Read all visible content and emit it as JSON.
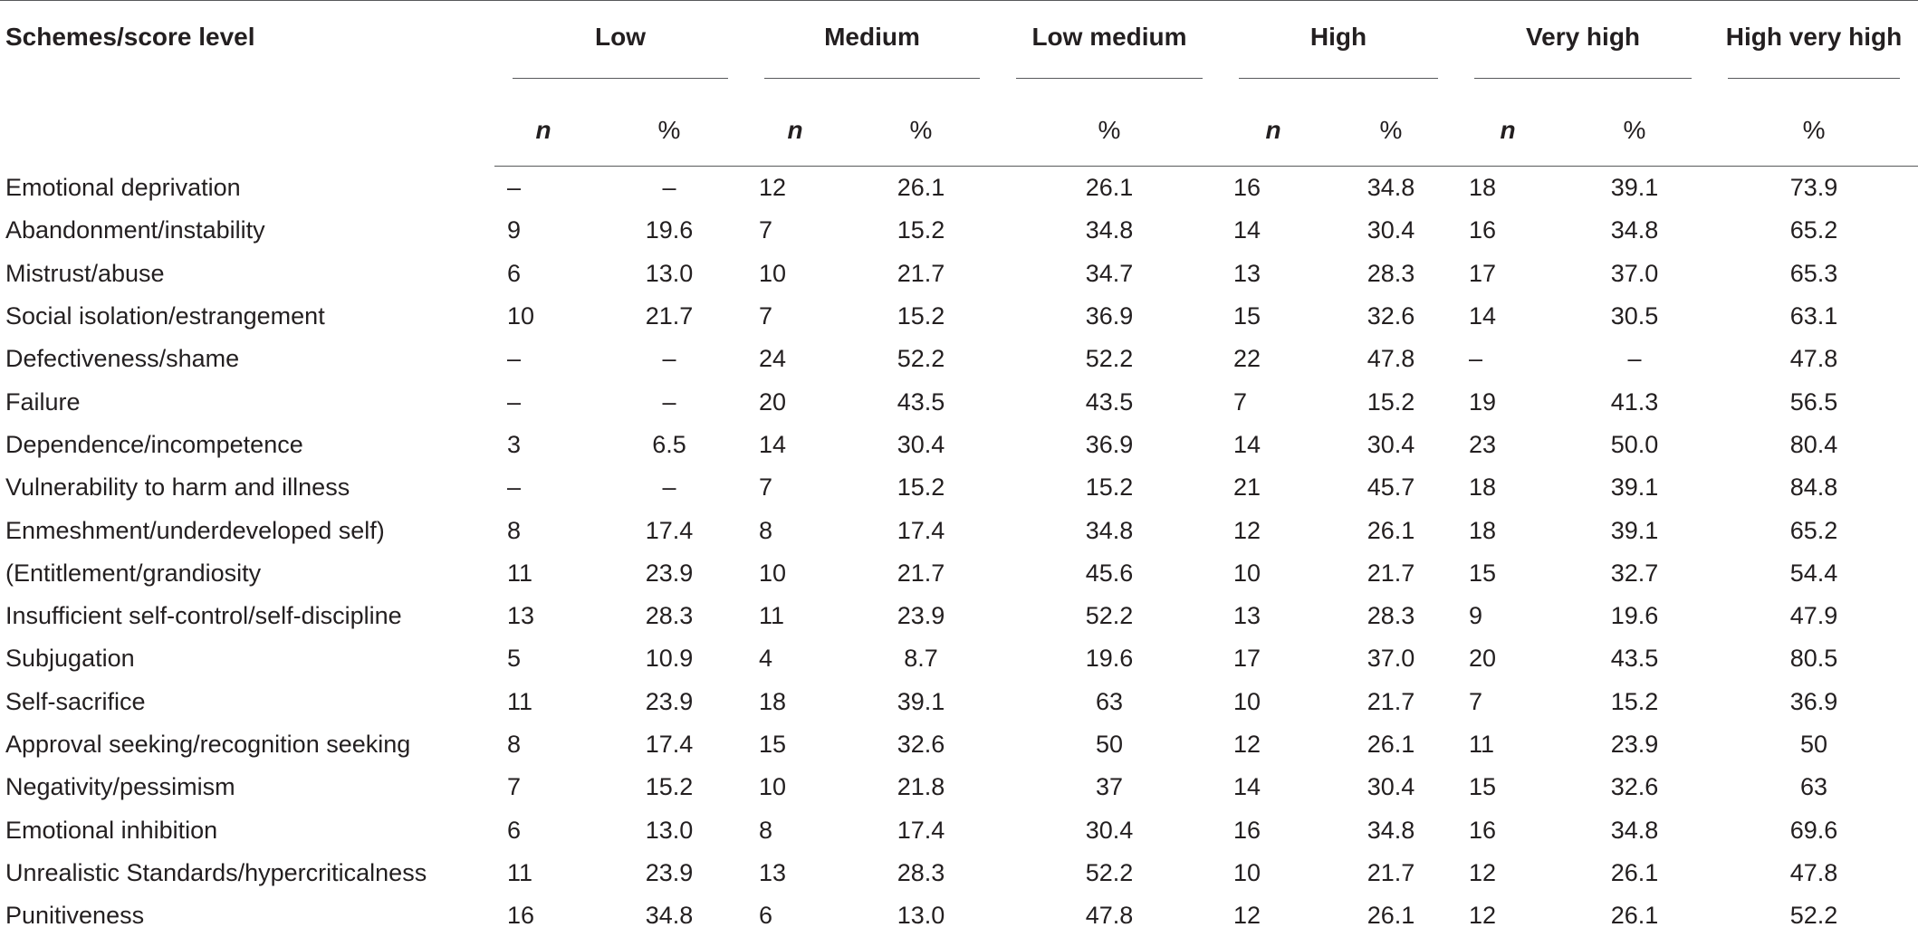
{
  "table": {
    "header": {
      "label": "Schemes/score level",
      "groups": [
        {
          "label": "Low",
          "subs": [
            "n",
            "%"
          ]
        },
        {
          "label": "Medium",
          "subs": [
            "n",
            "%"
          ]
        },
        {
          "label": "Low medium",
          "subs": [
            "%"
          ]
        },
        {
          "label": "High",
          "subs": [
            "n",
            "%"
          ]
        },
        {
          "label": "Very high",
          "subs": [
            "n",
            "%"
          ]
        },
        {
          "label": "High very high",
          "subs": [
            "%"
          ]
        }
      ]
    },
    "rows": [
      {
        "label": "Emotional deprivation",
        "cells": [
          "–",
          "–",
          "12",
          "26.1",
          "26.1",
          "16",
          "34.8",
          "18",
          "39.1",
          "73.9"
        ]
      },
      {
        "label": "Abandonment/instability",
        "cells": [
          "9",
          "19.6",
          "7",
          "15.2",
          "34.8",
          "14",
          "30.4",
          "16",
          "34.8",
          "65.2"
        ]
      },
      {
        "label": "Mistrust/abuse",
        "cells": [
          "6",
          "13.0",
          "10",
          "21.7",
          "34.7",
          "13",
          "28.3",
          "17",
          "37.0",
          "65.3"
        ]
      },
      {
        "label": "Social isolation/estrangement",
        "cells": [
          "10",
          "21.7",
          "7",
          "15.2",
          "36.9",
          "15",
          "32.6",
          "14",
          "30.5",
          "63.1"
        ]
      },
      {
        "label": "Defectiveness/shame",
        "cells": [
          "–",
          "–",
          "24",
          "52.2",
          "52.2",
          "22",
          "47.8",
          "–",
          "–",
          "47.8"
        ]
      },
      {
        "label": "Failure",
        "cells": [
          "–",
          "–",
          "20",
          "43.5",
          "43.5",
          "7",
          "15.2",
          "19",
          "41.3",
          "56.5"
        ]
      },
      {
        "label": "Dependence/incompetence",
        "cells": [
          "3",
          "6.5",
          "14",
          "30.4",
          "36.9",
          "14",
          "30.4",
          "23",
          "50.0",
          "80.4"
        ]
      },
      {
        "label": "Vulnerability to harm and illness",
        "cells": [
          "–",
          "–",
          "7",
          "15.2",
          "15.2",
          "21",
          "45.7",
          "18",
          "39.1",
          "84.8"
        ]
      },
      {
        "label": "Enmeshment/underdeveloped self)",
        "cells": [
          "8",
          "17.4",
          "8",
          "17.4",
          "34.8",
          "12",
          "26.1",
          "18",
          "39.1",
          "65.2"
        ]
      },
      {
        "label": "(Entitlement/grandiosity",
        "cells": [
          "11",
          "23.9",
          "10",
          "21.7",
          "45.6",
          "10",
          "21.7",
          "15",
          "32.7",
          "54.4"
        ]
      },
      {
        "label": "Insufficient self-control/self-discipline",
        "cells": [
          "13",
          "28.3",
          "11",
          "23.9",
          "52.2",
          "13",
          "28.3",
          "9",
          "19.6",
          "47.9"
        ]
      },
      {
        "label": "Subjugation",
        "cells": [
          "5",
          "10.9",
          "4",
          "8.7",
          "19.6",
          "17",
          "37.0",
          "20",
          "43.5",
          "80.5"
        ]
      },
      {
        "label": "Self-sacrifice",
        "cells": [
          "11",
          "23.9",
          "18",
          "39.1",
          "63",
          "10",
          "21.7",
          "7",
          "15.2",
          "36.9"
        ]
      },
      {
        "label": "Approval seeking/recognition seeking",
        "cells": [
          "8",
          "17.4",
          "15",
          "32.6",
          "50",
          "12",
          "26.1",
          "11",
          "23.9",
          "50"
        ]
      },
      {
        "label": "Negativity/pessimism",
        "cells": [
          "7",
          "15.2",
          "10",
          "21.8",
          "37",
          "14",
          "30.4",
          "15",
          "32.6",
          "63"
        ]
      },
      {
        "label": "Emotional inhibition",
        "cells": [
          "6",
          "13.0",
          "8",
          "17.4",
          "30.4",
          "16",
          "34.8",
          "16",
          "34.8",
          "69.6"
        ]
      },
      {
        "label": "Unrealistic Standards/hypercriticalness",
        "cells": [
          "11",
          "23.9",
          "13",
          "28.3",
          "52.2",
          "10",
          "21.7",
          "12",
          "26.1",
          "47.8"
        ]
      },
      {
        "label": "Punitiveness",
        "cells": [
          "16",
          "34.8",
          "6",
          "13.0",
          "47.8",
          "12",
          "26.1",
          "12",
          "26.1",
          "52.2"
        ]
      }
    ]
  }
}
